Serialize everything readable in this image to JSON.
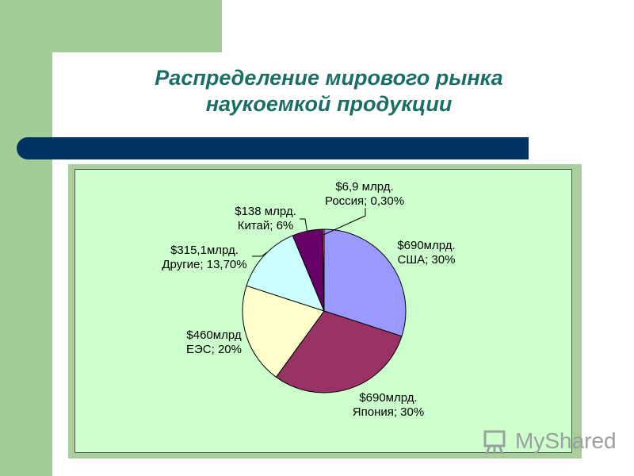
{
  "slide": {
    "title_line1": "Распределение мирового рынка",
    "title_line2": "наукоемкой продукции"
  },
  "watermark": {
    "text": "MyShared"
  },
  "chart_data": {
    "type": "pie",
    "start_angle_deg": 90,
    "direction": "clockwise",
    "slices": [
      {
        "key": "usa",
        "label_line1": "$690млрд.",
        "label_line2": "США; 30%",
        "value": 30,
        "color": "#9999ff"
      },
      {
        "key": "japan",
        "label_line1": "$690млрд.",
        "label_line2": "Япония; 30%",
        "value": 30,
        "color": "#993366"
      },
      {
        "key": "eu",
        "label_line1": "$460млрд",
        "label_line2": "ЕЭС; 20%",
        "value": 20,
        "color": "#ffffcc"
      },
      {
        "key": "other",
        "label_line1": "$315,1млрд.",
        "label_line2": "Другие; 13,70%",
        "value": 13.7,
        "color": "#ccffff"
      },
      {
        "key": "china",
        "label_line1": "$138 млрд.",
        "label_line2": "Китай; 6%",
        "value": 6,
        "color": "#660066"
      },
      {
        "key": "russia",
        "label_line1": "$6,9 млрд.",
        "label_line2": "Россия; 0,30%",
        "value": 0.3,
        "color": "#ff8080"
      }
    ]
  }
}
